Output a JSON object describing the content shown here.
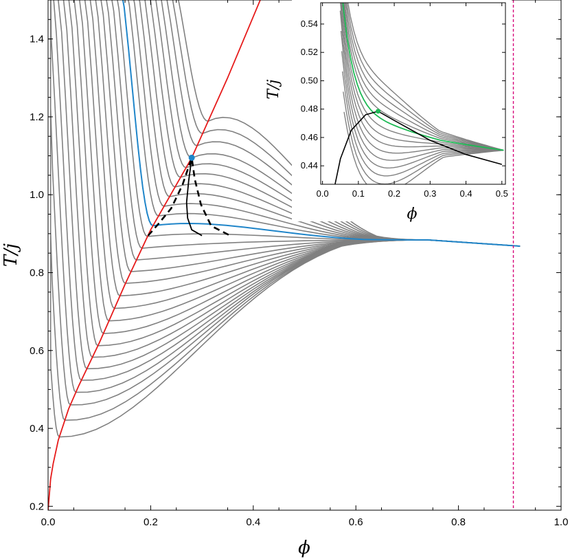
{
  "chart_data": [
    {
      "type": "line",
      "panel": "main",
      "xlabel": "ϕ",
      "ylabel": "T/j",
      "xlim": [
        0.0,
        1.0
      ],
      "ylim": [
        0.19,
        1.5
      ],
      "xticks": [
        0.0,
        0.2,
        0.4,
        0.6,
        0.8,
        1.0
      ],
      "xtick_labels": [
        "0.0",
        "0.2",
        "0.4",
        "0.6",
        "0.8",
        "1.0"
      ],
      "yticks": [
        0.2,
        0.4,
        0.6,
        0.8,
        1.0,
        1.2,
        1.4
      ],
      "ytick_labels": [
        "0.2",
        "0.4",
        "0.6",
        "0.8",
        "1.0",
        "1.2",
        "1.4"
      ],
      "grid": false,
      "colors": {
        "family": "#808080",
        "critical": "#1f85c9",
        "envelope": "#e61a1a",
        "spinodal": "#000000",
        "jamming_line": "#d6007a"
      },
      "critical_point": {
        "x": 0.28,
        "y": 1.095
      },
      "curve_family": {
        "count": 28,
        "tail_x": 0.74,
        "tail_y": 0.884,
        "end_x": 0.92,
        "end_y": 0.868,
        "critical_index": 17
      },
      "envelope": {
        "x": [
          0.0,
          0.005,
          0.01,
          0.02,
          0.04,
          0.06,
          0.1,
          0.15,
          0.2,
          0.28,
          0.35,
          0.42
        ],
        "y": [
          0.19,
          0.27,
          0.31,
          0.37,
          0.45,
          0.51,
          0.62,
          0.77,
          0.91,
          1.095,
          1.3,
          1.52
        ]
      },
      "binodal": {
        "x": [
          0.195,
          0.215,
          0.24,
          0.262,
          0.28,
          0.28,
          0.286,
          0.298,
          0.318,
          0.355
        ],
        "y": [
          0.895,
          0.925,
          0.965,
          1.025,
          1.095,
          1.095,
          1.04,
          0.975,
          0.92,
          0.895
        ]
      },
      "spinodal": {
        "x": [
          0.28,
          0.274,
          0.27,
          0.272,
          0.28,
          0.3
        ],
        "y": [
          1.095,
          1.035,
          0.98,
          0.94,
          0.91,
          0.895
        ]
      },
      "jamming_line": {
        "x": 0.907
      }
    },
    {
      "type": "line",
      "panel": "inset",
      "xlabel": "ϕ",
      "ylabel": "T/j",
      "xlim": [
        -0.005,
        0.51
      ],
      "ylim": [
        0.427,
        0.555
      ],
      "xticks": [
        0.0,
        0.1,
        0.2,
        0.3,
        0.4,
        0.5
      ],
      "xtick_labels": [
        "0.0",
        "0.1",
        "0.2",
        "0.3",
        "0.4",
        "0.5"
      ],
      "yticks": [
        0.44,
        0.46,
        0.48,
        0.5,
        0.52,
        0.54
      ],
      "ytick_labels": [
        "0.44",
        "0.46",
        "0.48",
        "0.50",
        "0.52",
        "0.54"
      ],
      "grid": false,
      "colors": {
        "family": "#808080",
        "critical": "#1db954",
        "black_curve": "#000000"
      },
      "critical_point": {
        "x": 0.155,
        "y": 0.4785
      },
      "curve_family": {
        "count": 15,
        "end_x": 0.505,
        "end_y": 0.451,
        "critical_index": 9
      },
      "black_curve": {
        "x": [
          0.035,
          0.05,
          0.08,
          0.12,
          0.155,
          0.2,
          0.3,
          0.4,
          0.5
        ],
        "y": [
          0.427,
          0.445,
          0.465,
          0.476,
          0.4785,
          0.472,
          0.458,
          0.448,
          0.441
        ]
      }
    }
  ]
}
